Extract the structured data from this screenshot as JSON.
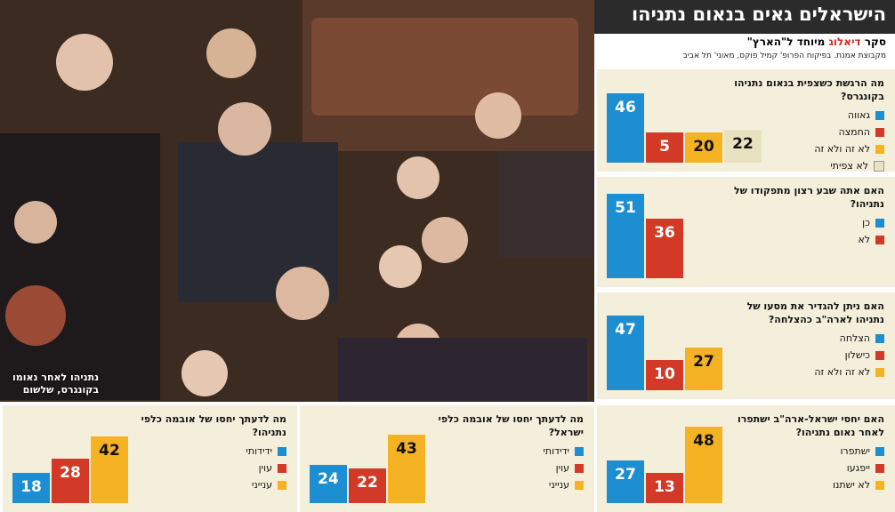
{
  "header": {
    "title": "הישראלים גאים בנאום נתניהו"
  },
  "subheader": {
    "survey_prefix": "סקר",
    "brand": "דיאלוג",
    "survey_suffix": "מיוחד ל\"הארץ\"",
    "credit": "מקבוצת אמנת. בפיקוח הפרופ' קמיל פוקס, מאוני' תל אביב"
  },
  "photo": {
    "caption_line1": "נתניהו לאחר נאומו",
    "caption_line2": "בקונגרס, שלשום"
  },
  "colors": {
    "blue": "#1d8ed1",
    "red": "#d23a27",
    "yellow": "#f5b324",
    "beige": "#e8e2c0",
    "panel": "#f3efdb",
    "header": "#2b2b2b"
  },
  "chart_data": [
    {
      "type": "bar",
      "question": "מה הרגשת כשצפית בנאום נתניהו בקונגרס?",
      "categories": [
        "גאווה",
        "החמצה",
        "לא זה ולא זה",
        "לא צפיתי"
      ],
      "values": [
        46,
        5,
        20,
        22
      ]
    },
    {
      "type": "bar",
      "question": "האם אתה שבע רצון מתפקודו של נתניהו?",
      "categories": [
        "כן",
        "לא"
      ],
      "values": [
        51,
        36
      ]
    },
    {
      "type": "bar",
      "question": "האם ניתן להגדיר את מסעו של נתניהו לארה\"ב כהצלחה?",
      "categories": [
        "הצלחה",
        "כישלון",
        "לא זה ולא זה"
      ],
      "values": [
        47,
        10,
        27
      ]
    },
    {
      "type": "bar",
      "question": "האם יחסי ישראל-ארה\"ב ישתפרו לאחר נאום נתניהו?",
      "categories": [
        "ישתפרו",
        "ייפגעו",
        "לא ישתנו"
      ],
      "values": [
        27,
        13,
        48
      ]
    },
    {
      "type": "bar",
      "question": "מה לדעתך יחסו של אובמה כלפי ישראל?",
      "categories": [
        "ידידותי",
        "עוין",
        "ענייני"
      ],
      "values": [
        24,
        22,
        43
      ]
    },
    {
      "type": "bar",
      "question": "מה לדעתך יחסו של אובמה כלפי נתניהו?",
      "categories": [
        "ידידותי",
        "עוין",
        "ענייני"
      ],
      "values": [
        18,
        28,
        42
      ]
    }
  ]
}
